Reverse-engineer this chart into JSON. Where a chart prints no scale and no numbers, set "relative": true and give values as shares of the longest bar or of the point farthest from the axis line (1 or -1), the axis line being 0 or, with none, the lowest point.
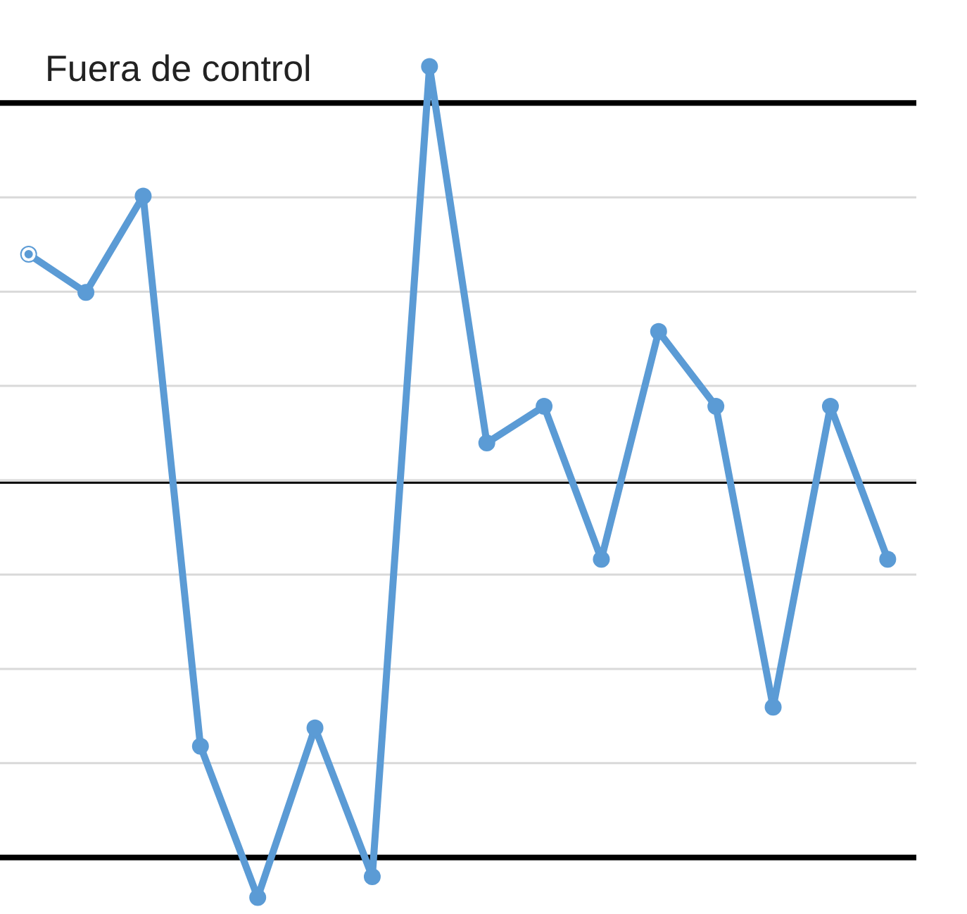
{
  "chart_data": {
    "type": "line",
    "relative": true,
    "categories": [
      null,
      null,
      null,
      null,
      null,
      null,
      null,
      null,
      null,
      null,
      null,
      null,
      null,
      null,
      null,
      null
    ],
    "series": [
      {
        "color": "#5b9bd5",
        "values": [
          0.774,
          0.728,
          0.844,
          0.182,
          0,
          0.204,
          0.025,
          1,
          0.547,
          0.591,
          0.407,
          0.681,
          0.591,
          0.229,
          0.591,
          0.407
        ]
      }
    ],
    "ref_lines": [
      {
        "axis": "y",
        "value": 0.956,
        "label": "Fuera de control",
        "color": "#000000"
      },
      {
        "axis": "y",
        "value": 0.499,
        "color": "#000000"
      },
      {
        "axis": "y",
        "value": 0.048,
        "color": "#000000"
      }
    ],
    "grid": "y",
    "marker": "circle",
    "line_style": "solid",
    "tick_labels": false
  }
}
